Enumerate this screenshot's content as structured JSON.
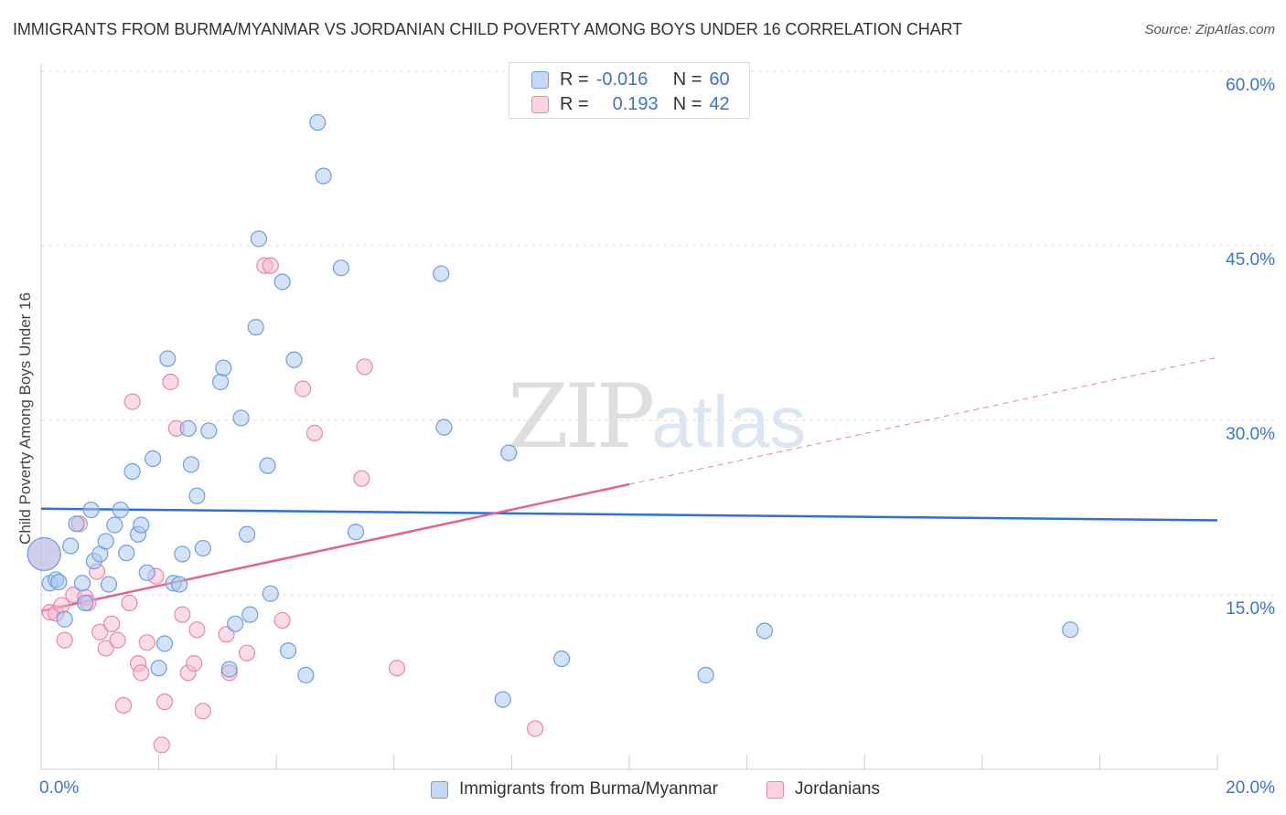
{
  "header": {
    "title": "IMMIGRANTS FROM BURMA/MYANMAR VS JORDANIAN CHILD POVERTY AMONG BOYS UNDER 16 CORRELATION CHART",
    "source": "Source: ZipAtlas.com"
  },
  "watermark": {
    "zip": "ZIP",
    "atlas": "atlas"
  },
  "stats_legend": {
    "rows": [
      {
        "r_label": "R =",
        "r_value": "-0.016",
        "n_label": "N =",
        "n_value": "60",
        "color": "#a9c6f0"
      },
      {
        "r_label": "R =",
        "r_value": "0.193",
        "n_label": "N =",
        "n_value": "42",
        "color": "#f7b8cc"
      }
    ]
  },
  "colors": {
    "blue_fill": "#a9c6f0",
    "blue_stroke": "#6f9fe0",
    "blue_line": "#2f6fd0",
    "pink_fill": "#f7b8cc",
    "pink_stroke": "#e889a6",
    "pink_line": "#e0648e",
    "tick_text": "#3d73c9",
    "grid": "#dddddd"
  },
  "chart_data": {
    "type": "scatter",
    "title": "IMMIGRANTS FROM BURMA/MYANMAR VS JORDANIAN CHILD POVERTY AMONG BOYS UNDER 16 CORRELATION CHART",
    "xlabel": "",
    "ylabel": "Child Poverty Among Boys Under 16",
    "xlim": [
      0,
      20
    ],
    "ylim": [
      0,
      60
    ],
    "x_tick_labels": [
      "0.0%",
      "20.0%"
    ],
    "y_tick_labels": [
      "15.0%",
      "30.0%",
      "45.0%",
      "60.0%"
    ],
    "y_tick_values": [
      15,
      30,
      45,
      60
    ],
    "grid": true,
    "legend_placement": "bottom-center",
    "series": [
      {
        "name": "Immigrants from Burma/Myanmar",
        "color": "#a9c6f0",
        "points": [
          [
            0.05,
            18.5
          ],
          [
            0.15,
            16.0
          ],
          [
            0.25,
            16.3
          ],
          [
            0.3,
            16.1
          ],
          [
            0.4,
            12.9
          ],
          [
            0.5,
            19.2
          ],
          [
            0.6,
            21.1
          ],
          [
            0.7,
            16.0
          ],
          [
            0.75,
            14.3
          ],
          [
            0.85,
            22.3
          ],
          [
            0.9,
            17.9
          ],
          [
            1.0,
            18.5
          ],
          [
            1.1,
            19.6
          ],
          [
            1.15,
            15.9
          ],
          [
            1.25,
            21.0
          ],
          [
            1.35,
            22.3
          ],
          [
            1.45,
            18.6
          ],
          [
            1.55,
            25.6
          ],
          [
            1.65,
            20.2
          ],
          [
            1.7,
            21.0
          ],
          [
            1.8,
            16.9
          ],
          [
            1.9,
            26.7
          ],
          [
            2.0,
            8.7
          ],
          [
            2.1,
            10.8
          ],
          [
            2.15,
            35.3
          ],
          [
            2.25,
            16.0
          ],
          [
            2.35,
            15.9
          ],
          [
            2.4,
            18.5
          ],
          [
            2.5,
            29.3
          ],
          [
            2.55,
            26.2
          ],
          [
            2.65,
            23.5
          ],
          [
            2.75,
            19.0
          ],
          [
            2.85,
            29.1
          ],
          [
            3.05,
            33.3
          ],
          [
            3.1,
            34.5
          ],
          [
            3.2,
            8.6
          ],
          [
            3.3,
            12.5
          ],
          [
            3.4,
            30.2
          ],
          [
            3.5,
            20.2
          ],
          [
            3.55,
            13.3
          ],
          [
            3.65,
            38.0
          ],
          [
            3.7,
            45.6
          ],
          [
            3.85,
            26.1
          ],
          [
            3.9,
            15.1
          ],
          [
            4.1,
            41.9
          ],
          [
            4.2,
            10.2
          ],
          [
            4.3,
            35.2
          ],
          [
            4.5,
            8.1
          ],
          [
            4.7,
            55.6
          ],
          [
            4.8,
            51.0
          ],
          [
            5.1,
            43.1
          ],
          [
            5.35,
            20.4
          ],
          [
            6.8,
            42.6
          ],
          [
            6.85,
            29.4
          ],
          [
            7.85,
            6.0
          ],
          [
            7.95,
            27.2
          ],
          [
            8.85,
            9.5
          ],
          [
            11.3,
            8.1
          ],
          [
            12.3,
            11.9
          ],
          [
            17.5,
            12.0
          ]
        ]
      },
      {
        "name": "Jordanians",
        "color": "#f7b8cc",
        "points": [
          [
            0.05,
            18.5
          ],
          [
            0.15,
            13.5
          ],
          [
            0.25,
            13.4
          ],
          [
            0.35,
            14.1
          ],
          [
            0.4,
            11.1
          ],
          [
            0.55,
            15.0
          ],
          [
            0.65,
            21.1
          ],
          [
            0.75,
            14.8
          ],
          [
            0.8,
            14.3
          ],
          [
            0.95,
            17.0
          ],
          [
            1.0,
            11.8
          ],
          [
            1.1,
            10.4
          ],
          [
            1.2,
            12.5
          ],
          [
            1.3,
            11.1
          ],
          [
            1.4,
            5.5
          ],
          [
            1.5,
            14.3
          ],
          [
            1.55,
            31.6
          ],
          [
            1.65,
            9.1
          ],
          [
            1.7,
            8.3
          ],
          [
            1.8,
            10.9
          ],
          [
            1.95,
            16.6
          ],
          [
            2.05,
            2.1
          ],
          [
            2.1,
            5.8
          ],
          [
            2.2,
            33.3
          ],
          [
            2.3,
            29.3
          ],
          [
            2.4,
            13.3
          ],
          [
            2.5,
            8.3
          ],
          [
            2.6,
            9.1
          ],
          [
            2.65,
            12.0
          ],
          [
            2.75,
            5.0
          ],
          [
            3.15,
            11.6
          ],
          [
            3.2,
            8.3
          ],
          [
            3.5,
            10.0
          ],
          [
            3.8,
            43.3
          ],
          [
            3.9,
            43.3
          ],
          [
            4.1,
            12.8
          ],
          [
            4.45,
            32.7
          ],
          [
            4.65,
            28.9
          ],
          [
            5.45,
            25.0
          ],
          [
            5.5,
            34.6
          ],
          [
            6.05,
            8.7
          ],
          [
            8.4,
            3.5
          ]
        ]
      }
    ],
    "trend_lines": [
      {
        "series": "Immigrants from Burma/Myanmar",
        "x": [
          0,
          20
        ],
        "y": [
          22.4,
          21.4
        ],
        "style": "solid"
      },
      {
        "series": "Jordanians",
        "x": [
          0,
          10
        ],
        "y": [
          13.6,
          24.5
        ],
        "style": "solid"
      },
      {
        "series": "Jordanians",
        "x": [
          10,
          20
        ],
        "y": [
          24.5,
          35.4
        ],
        "style": "dashed"
      }
    ]
  }
}
